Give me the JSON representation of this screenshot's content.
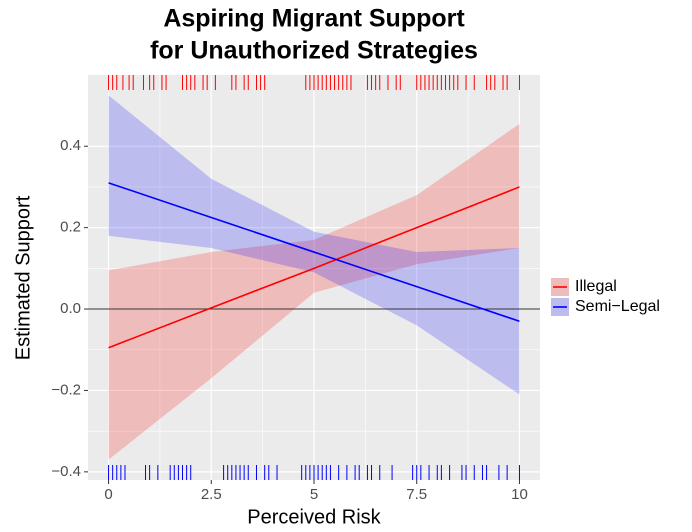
{
  "chart_data": {
    "type": "line",
    "title": [
      "Aspiring Migrant Support",
      "for Unauthorized Strategies"
    ],
    "x_label": "Perceived Risk",
    "y_label": "Estimated Support",
    "x": [
      0,
      2.5,
      5,
      7.5,
      10
    ],
    "series": [
      {
        "name": "Illegal",
        "color": "#ff0000",
        "values": [
          -0.095,
          0.003,
          0.1,
          0.2,
          0.3
        ],
        "lower": [
          -0.37,
          -0.17,
          0.04,
          0.11,
          0.15
        ],
        "upper": [
          0.095,
          0.14,
          0.17,
          0.28,
          0.455
        ],
        "rug_x": [
          0.0,
          0.1,
          0.2,
          0.35,
          0.5,
          0.6,
          0.85,
          1.0,
          1.1,
          1.3,
          1.4,
          1.8,
          1.9,
          2.0,
          2.1,
          2.3,
          2.4,
          2.6,
          3.0,
          3.1,
          3.3,
          3.4,
          3.6,
          3.7,
          3.8,
          4.8,
          4.9,
          5.0,
          5.1,
          5.2,
          5.3,
          5.4,
          5.5,
          5.6,
          5.7,
          5.8,
          5.9,
          6.3,
          6.4,
          6.5,
          6.6,
          6.8,
          7.0,
          7.1,
          7.5,
          7.6,
          7.7,
          7.8,
          7.9,
          8.0,
          8.1,
          8.2,
          8.3,
          8.4,
          8.5,
          8.7,
          8.9,
          9.2,
          9.3,
          9.4,
          9.6,
          9.7,
          10.0
        ]
      },
      {
        "name": "Semi−Legal",
        "color": "#0000ff",
        "values": [
          0.31,
          0.225,
          0.14,
          0.055,
          -0.03
        ],
        "lower": [
          0.18,
          0.15,
          0.09,
          -0.04,
          -0.21
        ],
        "upper": [
          0.525,
          0.32,
          0.19,
          0.14,
          0.15
        ],
        "rug_x": [
          0.0,
          0.1,
          0.2,
          0.3,
          0.4,
          0.9,
          1.0,
          1.2,
          1.5,
          1.6,
          1.7,
          1.8,
          1.9,
          2.0,
          2.8,
          2.9,
          3.0,
          3.1,
          3.2,
          3.3,
          3.4,
          3.6,
          3.8,
          3.9,
          4.1,
          4.7,
          4.8,
          4.9,
          5.0,
          5.1,
          5.2,
          5.3,
          5.4,
          5.6,
          5.8,
          6.0,
          6.1,
          6.3,
          6.4,
          6.6,
          6.9,
          7.4,
          7.5,
          7.6,
          7.8,
          8.0,
          8.1,
          8.3,
          8.6,
          8.7,
          8.9,
          9.1,
          9.2,
          9.5,
          9.7,
          10.0
        ]
      }
    ],
    "hline": 0,
    "xlim": [
      -0.5,
      10.5
    ],
    "ylim": [
      -0.42,
      0.575
    ],
    "xticks": [
      0,
      2.5,
      5,
      7.5,
      10
    ],
    "yticks": [
      {
        "value": -0.4,
        "label": "−0.4"
      },
      {
        "value": -0.2,
        "label": "−0.2"
      },
      {
        "value": 0,
        "label": "0.0"
      },
      {
        "value": 0.2,
        "label": "0.2"
      },
      {
        "value": 0.4,
        "label": "0.4"
      }
    ],
    "grid": true,
    "legend": "right"
  }
}
